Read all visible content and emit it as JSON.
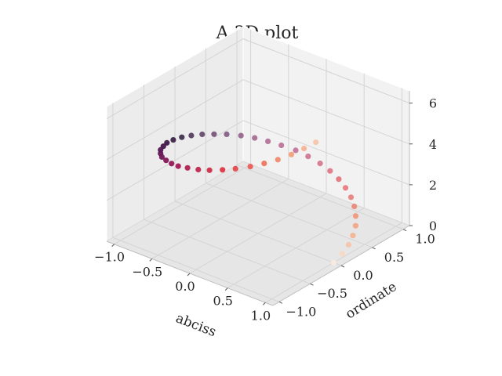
{
  "chart_data": {
    "type": "scatter",
    "projection": "3d",
    "title": "A 3D plot",
    "xlabel": "abciss",
    "ylabel": "ordinate",
    "zlabel": "",
    "xlim": [
      -1.1,
      1.1
    ],
    "ylim": [
      -1.1,
      1.1
    ],
    "zlim": [
      0,
      6.6
    ],
    "grid": true,
    "colormap": "rocket",
    "x_ticks": [
      "−1.0",
      "−0.5",
      "0.0",
      "0.5",
      "1.0"
    ],
    "y_ticks": [
      "−1.0",
      "−0.5",
      "0.0",
      "0.5",
      "1.0"
    ],
    "z_ticks": [
      "0",
      "2",
      "4",
      "6"
    ],
    "series": [
      {
        "points": [
          {
            "x": 1.0,
            "y": 0.0,
            "z": 0.0
          },
          {
            "x": 0.99,
            "y": 0.15,
            "z": 0.15
          },
          {
            "x": 0.96,
            "y": 0.29,
            "z": 0.3
          },
          {
            "x": 0.91,
            "y": 0.42,
            "z": 0.45
          },
          {
            "x": 0.84,
            "y": 0.55,
            "z": 0.6
          },
          {
            "x": 0.75,
            "y": 0.66,
            "z": 0.75
          },
          {
            "x": 0.65,
            "y": 0.76,
            "z": 0.9
          },
          {
            "x": 0.54,
            "y": 0.84,
            "z": 1.05
          },
          {
            "x": 0.41,
            "y": 0.91,
            "z": 1.2
          },
          {
            "x": 0.28,
            "y": 0.96,
            "z": 1.35
          },
          {
            "x": 0.14,
            "y": 0.99,
            "z": 1.5
          },
          {
            "x": 0.0,
            "y": 1.0,
            "z": 1.65
          },
          {
            "x": -0.15,
            "y": 0.99,
            "z": 1.8
          },
          {
            "x": -0.29,
            "y": 0.96,
            "z": 1.95
          },
          {
            "x": -0.43,
            "y": 0.9,
            "z": 2.1
          },
          {
            "x": -0.55,
            "y": 0.83,
            "z": 2.25
          },
          {
            "x": -0.66,
            "y": 0.75,
            "z": 2.4
          },
          {
            "x": -0.76,
            "y": 0.65,
            "z": 2.55
          },
          {
            "x": -0.85,
            "y": 0.53,
            "z": 2.7
          },
          {
            "x": -0.91,
            "y": 0.4,
            "z": 2.85
          },
          {
            "x": -0.96,
            "y": 0.27,
            "z": 3.0
          },
          {
            "x": -0.99,
            "y": 0.13,
            "z": 3.15
          },
          {
            "x": -1.0,
            "y": -0.01,
            "z": 3.3
          },
          {
            "x": -0.99,
            "y": -0.16,
            "z": 3.45
          },
          {
            "x": -0.96,
            "y": -0.3,
            "z": 3.6
          },
          {
            "x": -0.9,
            "y": -0.43,
            "z": 3.75
          },
          {
            "x": -0.83,
            "y": -0.56,
            "z": 3.9
          },
          {
            "x": -0.74,
            "y": -0.67,
            "z": 4.05
          },
          {
            "x": -0.64,
            "y": -0.77,
            "z": 4.2
          },
          {
            "x": -0.52,
            "y": -0.85,
            "z": 4.35
          },
          {
            "x": -0.39,
            "y": -0.92,
            "z": 4.5
          },
          {
            "x": -0.26,
            "y": -0.97,
            "z": 4.65
          },
          {
            "x": -0.12,
            "y": -0.99,
            "z": 4.8
          },
          {
            "x": 0.03,
            "y": -1.0,
            "z": 4.95
          },
          {
            "x": 0.17,
            "y": -0.99,
            "z": 5.1
          },
          {
            "x": 0.31,
            "y": -0.95,
            "z": 5.25
          },
          {
            "x": 0.44,
            "y": -0.9,
            "z": 5.4
          },
          {
            "x": 0.57,
            "y": -0.82,
            "z": 5.55
          },
          {
            "x": 0.68,
            "y": -0.73,
            "z": 5.7
          },
          {
            "x": 0.78,
            "y": -0.63,
            "z": 5.85
          },
          {
            "x": 0.86,
            "y": -0.51,
            "z": 6.0
          },
          {
            "x": 0.92,
            "y": -0.38,
            "z": 6.15
          },
          {
            "x": 0.97,
            "y": -0.25,
            "z": 6.3
          }
        ]
      }
    ]
  }
}
